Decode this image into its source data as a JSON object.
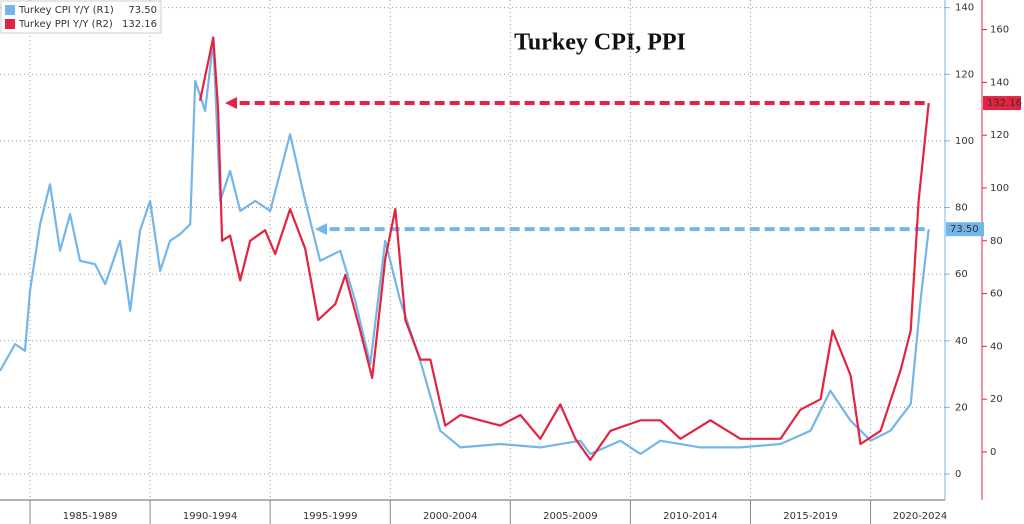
{
  "chart_data": {
    "type": "line",
    "title": "Turkey CPI, PPI",
    "xlim": [
      1983.75,
      2023.1
    ],
    "xticks": [
      {
        "value": 1985,
        "label": "1985-1989"
      },
      {
        "value": 1990,
        "label": "1990-1994"
      },
      {
        "value": 1995,
        "label": "1995-1999"
      },
      {
        "value": 2000,
        "label": "2000-2004"
      },
      {
        "value": 2005,
        "label": "2005-2009"
      },
      {
        "value": 2010,
        "label": "2010-2014"
      },
      {
        "value": 2015,
        "label": "2015-2019"
      },
      {
        "value": 2020,
        "label": "2020-2024"
      }
    ],
    "ylim": [
      -7.8,
      142.3
    ],
    "yticks": [
      0,
      20,
      40,
      60,
      80,
      100,
      120,
      140
    ],
    "y2lim": [
      -18.2,
      171.2
    ],
    "y2ticks": [
      0,
      20,
      40,
      60,
      80,
      100,
      120,
      140,
      160
    ],
    "grid": true,
    "legend": "top-left",
    "series": [
      {
        "name": "Turkey CPI Y/Y (R1)",
        "color": "#74b6ea",
        "axis": "y",
        "x": [
          1983.75,
          1984.38,
          1984.79,
          1985.0,
          1985.42,
          1985.83,
          1986.25,
          1986.67,
          1987.08,
          1987.71,
          1988.13,
          1988.75,
          1989.17,
          1989.58,
          1990.0,
          1990.42,
          1990.83,
          1991.25,
          1991.67,
          1991.88,
          1992.29,
          1992.63,
          1992.92,
          1993.33,
          1993.75,
          1994.38,
          1995.0,
          1995.83,
          1996.46,
          1997.08,
          1997.92,
          1998.54,
          1999.17,
          1999.79,
          2000.42,
          2001.25,
          2002.08,
          2002.92,
          2004.58,
          2006.25,
          2007.92,
          2008.33,
          2009.58,
          2010.42,
          2011.25,
          2012.92,
          2014.58,
          2016.25,
          2017.5,
          2018.33,
          2019.17,
          2020.0,
          2020.83,
          2021.67,
          2022.08,
          2022.42
        ],
        "values": [
          31,
          39,
          37,
          55,
          75,
          87,
          67,
          78,
          64,
          63,
          57,
          70,
          49,
          73,
          82,
          61,
          70,
          72,
          75,
          118,
          109,
          130,
          82,
          91,
          79,
          82,
          79,
          102,
          82,
          64,
          67,
          52,
          33,
          70,
          52,
          34,
          13,
          8,
          9,
          8,
          10,
          6,
          10,
          6,
          10,
          8,
          8,
          9,
          13,
          25,
          16,
          10,
          13,
          21,
          52,
          73.5
        ],
        "value_labels": [
          null,
          null,
          null,
          null,
          null,
          null,
          null,
          null,
          null,
          null,
          null,
          null,
          null,
          null,
          null,
          null,
          null,
          null,
          null,
          null,
          null,
          null,
          null,
          null,
          null,
          null,
          null,
          null,
          null,
          null,
          null,
          null,
          null,
          null,
          null,
          null,
          null,
          null,
          null,
          null,
          null,
          null,
          null,
          null,
          null,
          null,
          null,
          null,
          null,
          null,
          null,
          null,
          null,
          null,
          null,
          "73.50"
        ]
      },
      {
        "name": "Turkey PPI Y/Y (R2)",
        "color": "#e3233f",
        "axis": "y2",
        "x": [
          1992.08,
          1992.63,
          1992.83,
          1993.0,
          1993.33,
          1993.75,
          1994.17,
          1994.79,
          1995.21,
          1995.83,
          1996.46,
          1997.0,
          1997.71,
          1998.13,
          1998.75,
          1999.25,
          1999.79,
          2000.21,
          2000.63,
          2001.25,
          2001.67,
          2002.29,
          2002.92,
          2003.75,
          2004.58,
          2005.42,
          2006.25,
          2007.08,
          2007.71,
          2008.33,
          2009.17,
          2010.42,
          2011.25,
          2012.08,
          2013.33,
          2014.58,
          2016.25,
          2017.08,
          2017.92,
          2018.42,
          2019.17,
          2019.58,
          2020.42,
          2021.25,
          2021.67,
          2022.0,
          2022.42
        ],
        "values": [
          133,
          157,
          130,
          80,
          82,
          65,
          80,
          84,
          75,
          92,
          77,
          50,
          56,
          67,
          46,
          28,
          73,
          92,
          50,
          35,
          35,
          10,
          14,
          12,
          10,
          14,
          5,
          18,
          5,
          -3,
          8,
          12,
          12,
          5,
          12,
          5,
          5,
          16,
          20,
          46,
          29,
          3,
          8,
          31,
          46,
          95,
          132.16
        ],
        "value_labels": [
          null,
          null,
          null,
          null,
          null,
          null,
          null,
          null,
          null,
          null,
          null,
          null,
          null,
          null,
          null,
          null,
          null,
          null,
          null,
          null,
          null,
          null,
          null,
          null,
          null,
          null,
          null,
          null,
          null,
          null,
          null,
          null,
          null,
          null,
          null,
          null,
          null,
          null,
          null,
          null,
          null,
          null,
          null,
          null,
          null,
          null,
          "132.16"
        ]
      }
    ]
  }
}
